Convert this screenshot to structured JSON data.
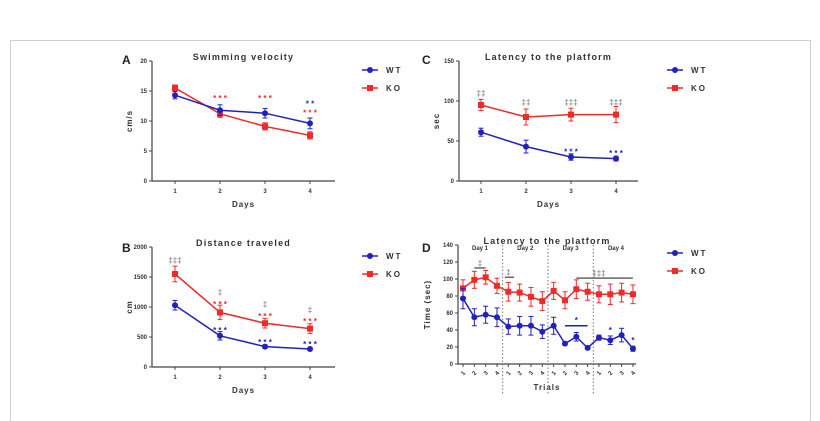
{
  "colors": {
    "WT": "#2222bb",
    "KO": "#ee2b2b",
    "axis": "#444444",
    "annot": "#888888"
  },
  "chart_data": [
    {
      "panel": "A",
      "type": "line",
      "title": "Swimming velocity",
      "xlabel": "Days",
      "ylabel": "cm/s",
      "categories": [
        "1",
        "2",
        "3",
        "4"
      ],
      "ylim": [
        0,
        20
      ],
      "yticks": [
        0,
        5,
        10,
        15,
        20
      ],
      "series": [
        {
          "name": "WT",
          "values": [
            14.3,
            11.8,
            11.3,
            9.6
          ],
          "err": [
            0.6,
            0.9,
            0.8,
            0.9
          ]
        },
        {
          "name": "KO",
          "values": [
            15.5,
            11.2,
            9.1,
            7.6
          ],
          "err": [
            0.5,
            0.6,
            0.6,
            0.6
          ]
        }
      ],
      "annotations": [
        {
          "x": 2,
          "y": 13.8,
          "text": "* * *",
          "color": "KO"
        },
        {
          "x": 3,
          "y": 13.8,
          "text": "* * *",
          "color": "KO"
        },
        {
          "x": 4,
          "y": 12.9,
          "text": "* *",
          "color": "WT"
        },
        {
          "x": 4,
          "y": 11.4,
          "text": "* * *",
          "color": "KO"
        }
      ]
    },
    {
      "panel": "C",
      "type": "line",
      "title": "Latency to the platform",
      "xlabel": "Days",
      "ylabel": "sec",
      "categories": [
        "1",
        "2",
        "3",
        "4"
      ],
      "ylim": [
        0,
        150
      ],
      "yticks": [
        0,
        50,
        100,
        150
      ],
      "series": [
        {
          "name": "WT",
          "values": [
            61,
            43,
            30,
            28
          ],
          "err": [
            5,
            8,
            4,
            3
          ]
        },
        {
          "name": "KO",
          "values": [
            95,
            80,
            83,
            83
          ],
          "err": [
            7,
            10,
            8,
            10
          ]
        }
      ],
      "annotations": [
        {
          "x": 1,
          "y": 110,
          "text": "‡‡",
          "color": "annot"
        },
        {
          "x": 2,
          "y": 99,
          "text": "‡‡",
          "color": "annot"
        },
        {
          "x": 3,
          "y": 99,
          "text": "‡‡‡",
          "color": "annot"
        },
        {
          "x": 4,
          "y": 99,
          "text": "‡‡‡",
          "color": "annot"
        },
        {
          "x": 3,
          "y": 37,
          "text": "* * *",
          "color": "WT"
        },
        {
          "x": 4,
          "y": 35,
          "text": "* * *",
          "color": "WT"
        }
      ]
    },
    {
      "panel": "B",
      "type": "line",
      "title": "Distance traveled",
      "xlabel": "Days",
      "ylabel": "cm",
      "categories": [
        "1",
        "2",
        "3",
        "4"
      ],
      "ylim": [
        0,
        2000
      ],
      "yticks": [
        0,
        500,
        1000,
        1500,
        2000
      ],
      "series": [
        {
          "name": "WT",
          "values": [
            1030,
            520,
            340,
            300
          ],
          "err": [
            80,
            70,
            30,
            25
          ]
        },
        {
          "name": "KO",
          "values": [
            1550,
            910,
            730,
            640
          ],
          "err": [
            130,
            120,
            80,
            80
          ]
        }
      ],
      "annotations": [
        {
          "x": 1,
          "y": 1780,
          "text": "‡‡‡",
          "color": "annot"
        },
        {
          "x": 2,
          "y": 1250,
          "text": "‡",
          "color": "annot"
        },
        {
          "x": 3,
          "y": 1050,
          "text": "‡",
          "color": "annot"
        },
        {
          "x": 4,
          "y": 960,
          "text": "‡",
          "color": "annot"
        },
        {
          "x": 2,
          "y": 1050,
          "text": "* * *",
          "color": "KO"
        },
        {
          "x": 3,
          "y": 850,
          "text": "* * *",
          "color": "KO"
        },
        {
          "x": 4,
          "y": 770,
          "text": "* * *",
          "color": "KO"
        },
        {
          "x": 2,
          "y": 620,
          "text": "* * *",
          "color": "WT"
        },
        {
          "x": 3,
          "y": 420,
          "text": "* * *",
          "color": "WT"
        },
        {
          "x": 4,
          "y": 380,
          "text": "* * *",
          "color": "WT"
        }
      ]
    },
    {
      "panel": "D",
      "type": "line",
      "title": "Latency to the platform",
      "xlabel": "Trials",
      "ylabel": "Time (sec)",
      "categories": [
        "1",
        "2",
        "3",
        "4",
        "1",
        "2",
        "3",
        "4",
        "1",
        "2",
        "3",
        "4",
        "1",
        "2",
        "3",
        "4"
      ],
      "groups": [
        "Day 1",
        "Day 2",
        "Day 3",
        "Day 4"
      ],
      "ylim": [
        0,
        140
      ],
      "yticks": [
        0,
        20,
        40,
        60,
        80,
        100,
        120,
        140
      ],
      "series": [
        {
          "name": "WT",
          "values": [
            77,
            55,
            58,
            55,
            44,
            45,
            45,
            38,
            45,
            24,
            32,
            19,
            31,
            28,
            34,
            18
          ],
          "err": [
            12,
            10,
            10,
            11,
            9,
            11,
            11,
            8,
            10,
            2,
            5,
            2,
            3,
            5,
            8,
            3
          ]
        },
        {
          "name": "KO",
          "values": [
            89,
            99,
            102,
            92,
            85,
            84,
            79,
            74,
            86,
            75,
            88,
            85,
            82,
            82,
            84,
            82
          ],
          "err": [
            10,
            10,
            8,
            9,
            11,
            10,
            11,
            11,
            10,
            10,
            11,
            10,
            10,
            12,
            11,
            11
          ]
        }
      ],
      "annotations": [
        {
          "x": 2.5,
          "y": 119,
          "text": "‡",
          "color": "annot",
          "bar": [
            2,
            3
          ],
          "by": 113
        },
        {
          "x": 5,
          "y": 108,
          "text": "‡",
          "color": "annot",
          "bar": [
            4.7,
            5.5
          ],
          "by": 102
        },
        {
          "x": 13,
          "y": 107,
          "text": "‡‡‡",
          "color": "annot",
          "bar": [
            11,
            16
          ],
          "by": 101
        },
        {
          "x": 11,
          "y": 52,
          "text": "*",
          "color": "WT",
          "bar": [
            10,
            12
          ],
          "by": 45
        },
        {
          "x": 14,
          "y": 40,
          "text": "*",
          "color": "WT"
        },
        {
          "x": 16,
          "y": 28,
          "text": "*",
          "color": "WT"
        }
      ]
    }
  ],
  "legend": [
    "WT",
    "KO"
  ]
}
